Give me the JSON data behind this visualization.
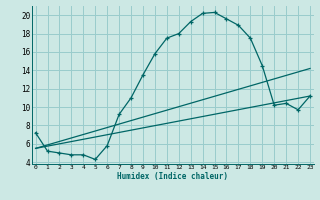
{
  "xlabel": "Humidex (Indice chaleur)",
  "bg_color": "#cce8e4",
  "line_color": "#006666",
  "grid_color": "#99cccc",
  "xlim": [
    0,
    23
  ],
  "ylim": [
    4,
    21
  ],
  "xticks": [
    0,
    1,
    2,
    3,
    4,
    5,
    6,
    7,
    8,
    9,
    10,
    11,
    12,
    13,
    14,
    15,
    16,
    17,
    18,
    19,
    20,
    21,
    22,
    23
  ],
  "yticks": [
    4,
    6,
    8,
    10,
    12,
    14,
    16,
    18,
    20
  ],
  "main_x": [
    0,
    1,
    2,
    3,
    4,
    5,
    6,
    7,
    8,
    9,
    10,
    11,
    12,
    13,
    14,
    15,
    16,
    17,
    18,
    19,
    20,
    21,
    22,
    23
  ],
  "main_y": [
    7.2,
    5.2,
    5.0,
    4.8,
    4.8,
    4.3,
    5.8,
    9.2,
    11.0,
    13.5,
    15.8,
    17.5,
    18.0,
    19.3,
    20.2,
    20.3,
    19.6,
    18.9,
    17.5,
    14.5,
    10.2,
    10.4,
    9.7,
    11.2
  ],
  "line1_x": [
    0,
    23
  ],
  "line1_y": [
    5.5,
    14.2
  ],
  "line2_x": [
    0,
    23
  ],
  "line2_y": [
    5.5,
    11.2
  ]
}
